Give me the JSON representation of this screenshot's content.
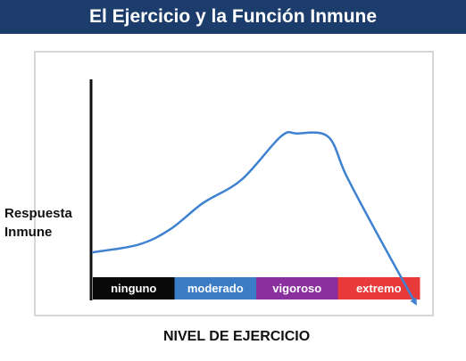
{
  "chart_data": {
    "type": "line",
    "title": "El Ejercicio y la Función Inmune",
    "xlabel": "NIVEL DE EJERCICIO",
    "ylabel": "Respuesta Inmune",
    "categories": [
      {
        "label": "ninguno",
        "color": "#0a0a0a"
      },
      {
        "label": "moderado",
        "color": "#3a7cc6"
      },
      {
        "label": "vigoroso",
        "color": "#8a2f9e"
      },
      {
        "label": "extremo",
        "color": "#e83a3a"
      }
    ],
    "xlim": [
      0,
      4
    ],
    "ylim": [
      0,
      100
    ],
    "line_color": "#3f82d1",
    "series": [
      {
        "x": [
          0,
          0.56,
          0.95,
          1.35,
          1.82,
          2.3,
          2.5,
          2.88,
          3.1,
          3.45,
          3.95
        ],
        "y": [
          15,
          20,
          30,
          47,
          62,
          90,
          92,
          90,
          65,
          30,
          -18
        ]
      }
    ]
  }
}
